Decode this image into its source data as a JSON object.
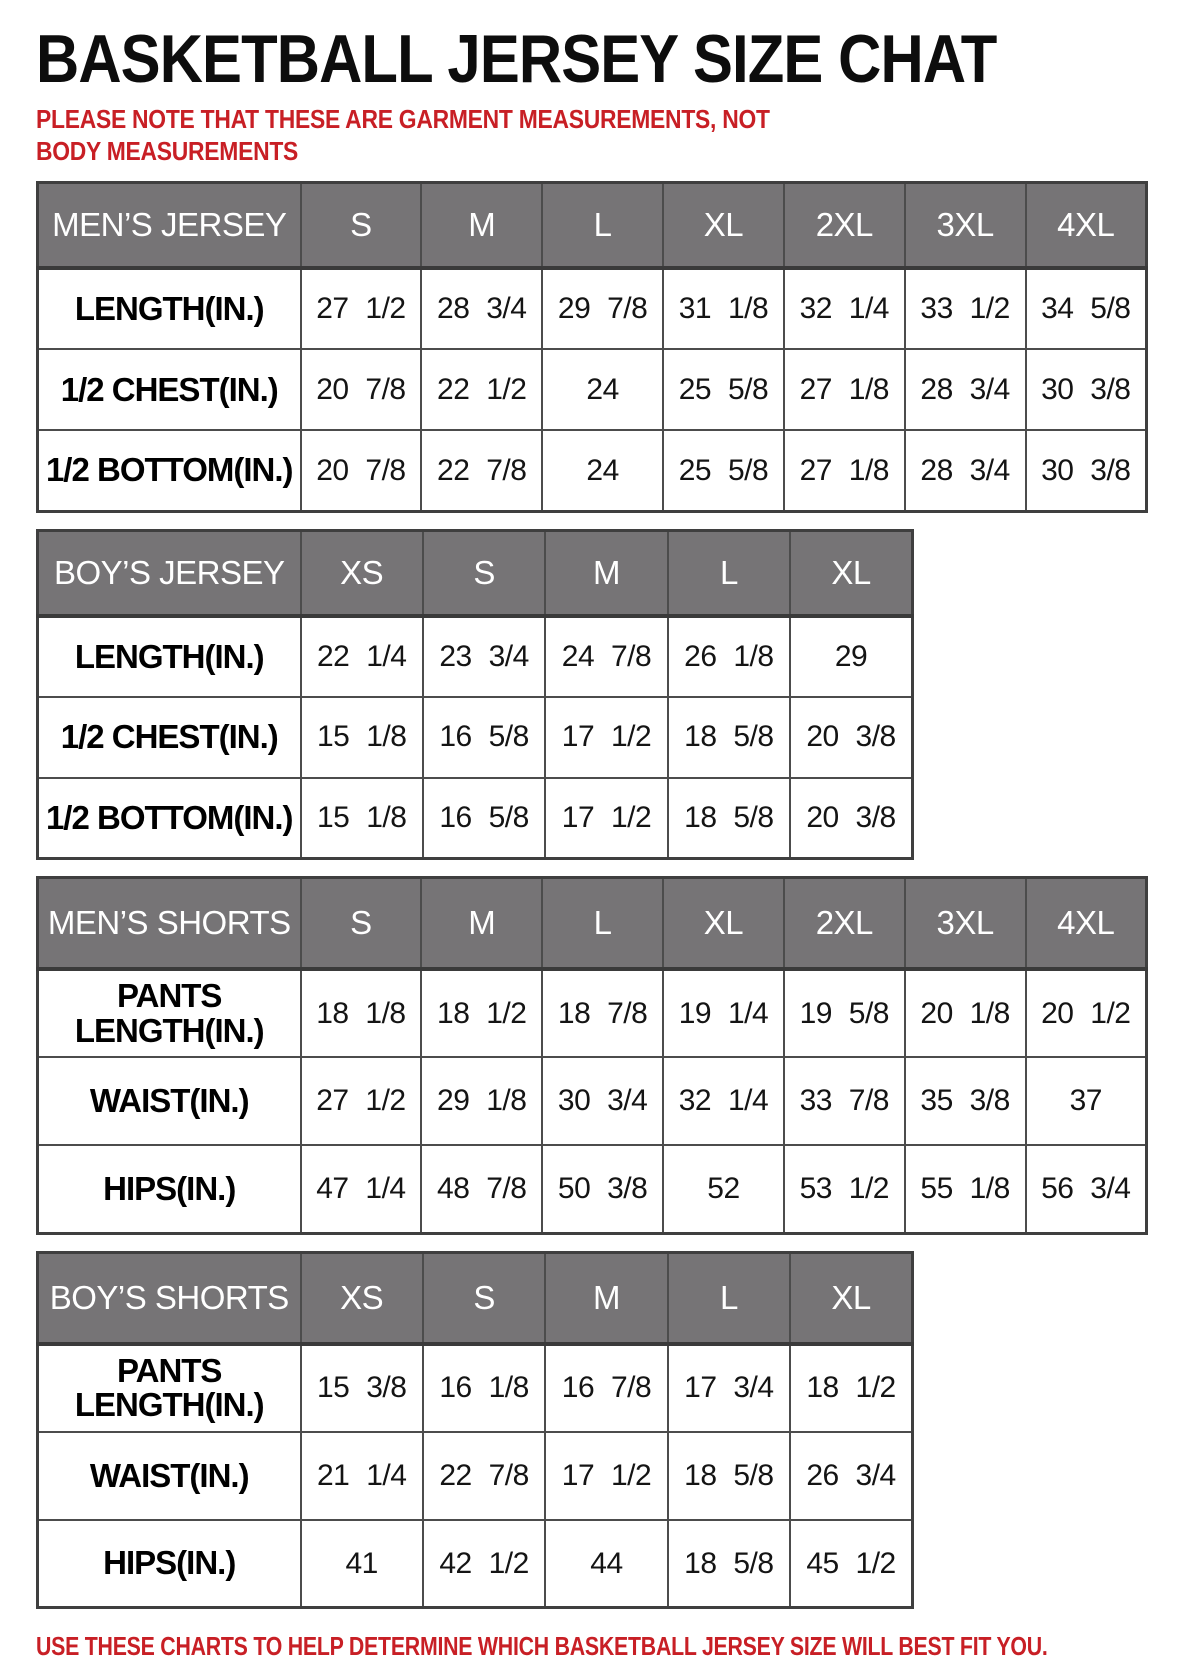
{
  "title": "BASKETBALL JERSEY SIZE CHAT",
  "note_top": "PLEASE NOTE THAT THESE ARE GARMENT MEASUREMENTS, NOT BODY MEASUREMENTS",
  "note_bottom": "USE THESE CHARTS TO HELP DETERMINE WHICH BASKETBALL JERSEY SIZE WILL BEST FIT YOU.",
  "colors": {
    "header_bg": "#767476",
    "header_text": "#ffffff",
    "note_red": "#c81f25",
    "border": "#4c4c4c",
    "body_text": "#141414"
  },
  "tables": [
    {
      "id": "mens-jersey",
      "header": [
        "MEN’S JERSEY",
        "S",
        "M",
        "L",
        "XL",
        "2XL",
        "3XL",
        "4XL"
      ],
      "rows": [
        [
          "LENGTH(IN.)",
          "27 1/2",
          "28 3/4",
          "29 7/8",
          "31 1/8",
          "32 1/4",
          "33 1/2",
          "34 5/8"
        ],
        [
          "1/2 CHEST(IN.)",
          "20 7/8",
          "22 1/2",
          "24",
          "25 5/8",
          "27 1/8",
          "28 3/4",
          "30 3/8"
        ],
        [
          "1/2 BOTTOM(IN.)",
          "20 7/8",
          "22 7/8",
          "24",
          "25 5/8",
          "27 1/8",
          "28 3/4",
          "30 3/8"
        ]
      ]
    },
    {
      "id": "boys-jersey",
      "header": [
        "BOY’S JERSEY",
        "XS",
        "S",
        "M",
        "L",
        "XL"
      ],
      "rows": [
        [
          "LENGTH(IN.)",
          "22 1/4",
          "23 3/4",
          "24 7/8",
          "26 1/8",
          "29"
        ],
        [
          "1/2 CHEST(IN.)",
          "15 1/8",
          "16 5/8",
          "17 1/2",
          "18 5/8",
          "20 3/8"
        ],
        [
          "1/2 BOTTOM(IN.)",
          "15 1/8",
          "16 5/8",
          "17 1/2",
          "18 5/8",
          "20 3/8"
        ]
      ]
    },
    {
      "id": "mens-shorts",
      "header": [
        "MEN’S SHORTS",
        "S",
        "M",
        "L",
        "XL",
        "2XL",
        "3XL",
        "4XL"
      ],
      "rows": [
        [
          "PANTS LENGTH(IN.)",
          "18 1/8",
          "18 1/2",
          "18 7/8",
          "19 1/4",
          "19 5/8",
          "20 1/8",
          "20 1/2"
        ],
        [
          "WAIST(IN.)",
          "27 1/2",
          "29 1/8",
          "30 3/4",
          "32 1/4",
          "33 7/8",
          "35 3/8",
          "37"
        ],
        [
          "HIPS(IN.)",
          "47 1/4",
          "48 7/8",
          "50 3/8",
          "52",
          "53 1/2",
          "55 1/8",
          "56 3/4"
        ]
      ]
    },
    {
      "id": "boys-shorts",
      "header": [
        "BOY’S SHORTS",
        "XS",
        "S",
        "M",
        "L",
        "XL"
      ],
      "rows": [
        [
          "PANTS LENGTH(IN.)",
          "15 3/8",
          "16 1/8",
          "16 7/8",
          "17 3/4",
          "18 1/2"
        ],
        [
          "WAIST(IN.)",
          "21 1/4",
          "22 7/8",
          "17 1/2",
          "18 5/8",
          "26 3/4"
        ],
        [
          "HIPS(IN.)",
          "41",
          "42 1/2",
          "44",
          "18 5/8",
          "45 1/2"
        ]
      ]
    }
  ]
}
